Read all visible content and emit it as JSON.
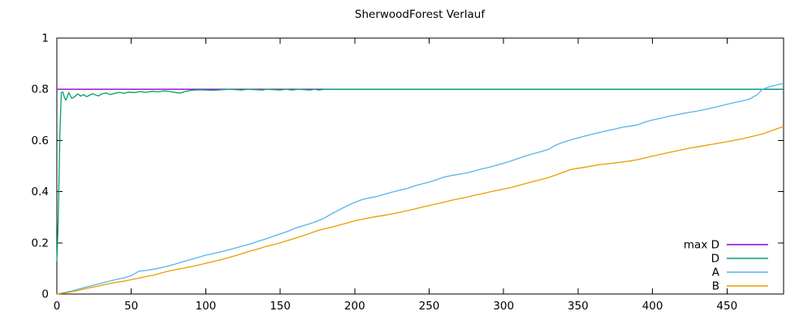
{
  "chart_data": {
    "type": "line",
    "title": "SherwoodForest Verlauf",
    "xlabel": "",
    "ylabel": "",
    "xlim": [
      0,
      488
    ],
    "ylim": [
      0,
      1
    ],
    "grid": false,
    "legend_position": "inside-bottom-right",
    "xticks": [
      {
        "v": 0,
        "label": "0"
      },
      {
        "v": 50,
        "label": "50"
      },
      {
        "v": 100,
        "label": "100"
      },
      {
        "v": 150,
        "label": "150"
      },
      {
        "v": 200,
        "label": "200"
      },
      {
        "v": 250,
        "label": "250"
      },
      {
        "v": 300,
        "label": "300"
      },
      {
        "v": 350,
        "label": "350"
      },
      {
        "v": 400,
        "label": "400"
      },
      {
        "v": 450,
        "label": "450"
      }
    ],
    "yticks": [
      {
        "v": 0,
        "label": "0"
      },
      {
        "v": 0.2,
        "label": "0.2"
      },
      {
        "v": 0.4,
        "label": "0.4"
      },
      {
        "v": 0.6,
        "label": "0.6"
      },
      {
        "v": 0.8,
        "label": "0.8"
      },
      {
        "v": 1,
        "label": "1"
      }
    ],
    "series": [
      {
        "name": "max D",
        "color": "#9400d3",
        "points": [
          [
            0,
            0.8
          ],
          [
            488,
            0.8
          ]
        ]
      },
      {
        "name": "D",
        "color": "#009e73",
        "points": [
          [
            0,
            0.127
          ],
          [
            1,
            0.3
          ],
          [
            2,
            0.62
          ],
          [
            3,
            0.787
          ],
          [
            4,
            0.79
          ],
          [
            5,
            0.77
          ],
          [
            6,
            0.757
          ],
          [
            7,
            0.771
          ],
          [
            8,
            0.787
          ],
          [
            9,
            0.776
          ],
          [
            10,
            0.765
          ],
          [
            12,
            0.771
          ],
          [
            14,
            0.782
          ],
          [
            16,
            0.773
          ],
          [
            18,
            0.779
          ],
          [
            20,
            0.771
          ],
          [
            22,
            0.777
          ],
          [
            24,
            0.783
          ],
          [
            26,
            0.778
          ],
          [
            28,
            0.774
          ],
          [
            30,
            0.781
          ],
          [
            33,
            0.786
          ],
          [
            36,
            0.779
          ],
          [
            39,
            0.784
          ],
          [
            42,
            0.788
          ],
          [
            45,
            0.784
          ],
          [
            48,
            0.789
          ],
          [
            52,
            0.787
          ],
          [
            56,
            0.791
          ],
          [
            60,
            0.788
          ],
          [
            64,
            0.792
          ],
          [
            68,
            0.79
          ],
          [
            72,
            0.794
          ],
          [
            76,
            0.791
          ],
          [
            80,
            0.787
          ],
          [
            83,
            0.785
          ],
          [
            86,
            0.791
          ],
          [
            90,
            0.796
          ],
          [
            95,
            0.798
          ],
          [
            100,
            0.797
          ],
          [
            105,
            0.796
          ],
          [
            110,
            0.798
          ],
          [
            116,
            0.8
          ],
          [
            124,
            0.797
          ],
          [
            128,
            0.8
          ],
          [
            138,
            0.797
          ],
          [
            141,
            0.8
          ],
          [
            150,
            0.797
          ],
          [
            154,
            0.8
          ],
          [
            158,
            0.797
          ],
          [
            162,
            0.8
          ],
          [
            170,
            0.797
          ],
          [
            173,
            0.8
          ],
          [
            176,
            0.797
          ],
          [
            180,
            0.8
          ],
          [
            488,
            0.8
          ]
        ]
      },
      {
        "name": "A",
        "color": "#56b4e9",
        "points": [
          [
            0,
            0
          ],
          [
            5,
            0.006
          ],
          [
            10,
            0.012
          ],
          [
            15,
            0.02
          ],
          [
            20,
            0.028
          ],
          [
            25,
            0.035
          ],
          [
            30,
            0.042
          ],
          [
            35,
            0.05
          ],
          [
            40,
            0.057
          ],
          [
            45,
            0.063
          ],
          [
            50,
            0.072
          ],
          [
            55,
            0.089
          ],
          [
            60,
            0.092
          ],
          [
            65,
            0.097
          ],
          [
            70,
            0.103
          ],
          [
            75,
            0.11
          ],
          [
            80,
            0.118
          ],
          [
            85,
            0.127
          ],
          [
            90,
            0.135
          ],
          [
            95,
            0.143
          ],
          [
            100,
            0.152
          ],
          [
            105,
            0.158
          ],
          [
            110,
            0.165
          ],
          [
            115,
            0.172
          ],
          [
            120,
            0.18
          ],
          [
            125,
            0.188
          ],
          [
            130,
            0.196
          ],
          [
            135,
            0.206
          ],
          [
            140,
            0.215
          ],
          [
            145,
            0.225
          ],
          [
            150,
            0.235
          ],
          [
            155,
            0.245
          ],
          [
            160,
            0.257
          ],
          [
            165,
            0.266
          ],
          [
            170,
            0.275
          ],
          [
            175,
            0.285
          ],
          [
            180,
            0.298
          ],
          [
            185,
            0.315
          ],
          [
            190,
            0.33
          ],
          [
            195,
            0.345
          ],
          [
            200,
            0.358
          ],
          [
            205,
            0.369
          ],
          [
            210,
            0.376
          ],
          [
            215,
            0.381
          ],
          [
            220,
            0.39
          ],
          [
            225,
            0.398
          ],
          [
            230,
            0.405
          ],
          [
            235,
            0.412
          ],
          [
            240,
            0.422
          ],
          [
            245,
            0.43
          ],
          [
            250,
            0.437
          ],
          [
            255,
            0.447
          ],
          [
            260,
            0.457
          ],
          [
            265,
            0.463
          ],
          [
            270,
            0.468
          ],
          [
            275,
            0.473
          ],
          [
            280,
            0.48
          ],
          [
            285,
            0.488
          ],
          [
            290,
            0.495
          ],
          [
            295,
            0.503
          ],
          [
            300,
            0.511
          ],
          [
            305,
            0.52
          ],
          [
            310,
            0.53
          ],
          [
            315,
            0.54
          ],
          [
            320,
            0.548
          ],
          [
            325,
            0.556
          ],
          [
            330,
            0.565
          ],
          [
            335,
            0.582
          ],
          [
            340,
            0.593
          ],
          [
            345,
            0.602
          ],
          [
            350,
            0.61
          ],
          [
            355,
            0.618
          ],
          [
            360,
            0.625
          ],
          [
            365,
            0.632
          ],
          [
            370,
            0.639
          ],
          [
            375,
            0.645
          ],
          [
            380,
            0.652
          ],
          [
            385,
            0.656
          ],
          [
            390,
            0.661
          ],
          [
            395,
            0.672
          ],
          [
            400,
            0.68
          ],
          [
            405,
            0.686
          ],
          [
            410,
            0.693
          ],
          [
            415,
            0.699
          ],
          [
            420,
            0.705
          ],
          [
            425,
            0.71
          ],
          [
            430,
            0.715
          ],
          [
            435,
            0.721
          ],
          [
            440,
            0.727
          ],
          [
            445,
            0.734
          ],
          [
            450,
            0.741
          ],
          [
            455,
            0.748
          ],
          [
            460,
            0.754
          ],
          [
            465,
            0.761
          ],
          [
            470,
            0.778
          ],
          [
            474,
            0.8
          ],
          [
            478,
            0.809
          ],
          [
            483,
            0.816
          ],
          [
            488,
            0.823
          ]
        ]
      },
      {
        "name": "B",
        "color": "#e69f00",
        "points": [
          [
            0,
            0
          ],
          [
            5,
            0.004
          ],
          [
            10,
            0.009
          ],
          [
            15,
            0.015
          ],
          [
            20,
            0.022
          ],
          [
            25,
            0.028
          ],
          [
            30,
            0.034
          ],
          [
            35,
            0.04
          ],
          [
            40,
            0.046
          ],
          [
            45,
            0.05
          ],
          [
            50,
            0.056
          ],
          [
            55,
            0.062
          ],
          [
            60,
            0.068
          ],
          [
            65,
            0.074
          ],
          [
            70,
            0.082
          ],
          [
            75,
            0.09
          ],
          [
            80,
            0.096
          ],
          [
            85,
            0.101
          ],
          [
            90,
            0.107
          ],
          [
            95,
            0.113
          ],
          [
            100,
            0.12
          ],
          [
            105,
            0.127
          ],
          [
            110,
            0.134
          ],
          [
            115,
            0.142
          ],
          [
            120,
            0.15
          ],
          [
            125,
            0.159
          ],
          [
            130,
            0.168
          ],
          [
            135,
            0.176
          ],
          [
            140,
            0.185
          ],
          [
            145,
            0.192
          ],
          [
            150,
            0.2
          ],
          [
            155,
            0.209
          ],
          [
            160,
            0.218
          ],
          [
            165,
            0.227
          ],
          [
            170,
            0.237
          ],
          [
            175,
            0.248
          ],
          [
            180,
            0.255
          ],
          [
            185,
            0.262
          ],
          [
            190,
            0.27
          ],
          [
            195,
            0.278
          ],
          [
            200,
            0.286
          ],
          [
            205,
            0.292
          ],
          [
            210,
            0.298
          ],
          [
            215,
            0.303
          ],
          [
            220,
            0.308
          ],
          [
            225,
            0.313
          ],
          [
            230,
            0.319
          ],
          [
            235,
            0.325
          ],
          [
            240,
            0.332
          ],
          [
            245,
            0.339
          ],
          [
            250,
            0.346
          ],
          [
            255,
            0.352
          ],
          [
            260,
            0.359
          ],
          [
            265,
            0.366
          ],
          [
            270,
            0.372
          ],
          [
            275,
            0.378
          ],
          [
            280,
            0.385
          ],
          [
            285,
            0.391
          ],
          [
            290,
            0.398
          ],
          [
            295,
            0.404
          ],
          [
            300,
            0.41
          ],
          [
            305,
            0.416
          ],
          [
            310,
            0.424
          ],
          [
            315,
            0.432
          ],
          [
            320,
            0.44
          ],
          [
            325,
            0.447
          ],
          [
            330,
            0.455
          ],
          [
            335,
            0.465
          ],
          [
            340,
            0.476
          ],
          [
            345,
            0.486
          ],
          [
            350,
            0.491
          ],
          [
            355,
            0.496
          ],
          [
            360,
            0.501
          ],
          [
            365,
            0.506
          ],
          [
            370,
            0.509
          ],
          [
            375,
            0.512
          ],
          [
            380,
            0.516
          ],
          [
            385,
            0.52
          ],
          [
            390,
            0.525
          ],
          [
            395,
            0.532
          ],
          [
            400,
            0.539
          ],
          [
            405,
            0.545
          ],
          [
            410,
            0.552
          ],
          [
            415,
            0.558
          ],
          [
            420,
            0.564
          ],
          [
            425,
            0.57
          ],
          [
            430,
            0.575
          ],
          [
            435,
            0.58
          ],
          [
            440,
            0.585
          ],
          [
            445,
            0.59
          ],
          [
            450,
            0.595
          ],
          [
            455,
            0.601
          ],
          [
            460,
            0.606
          ],
          [
            465,
            0.613
          ],
          [
            470,
            0.62
          ],
          [
            475,
            0.628
          ],
          [
            480,
            0.638
          ],
          [
            488,
            0.655
          ]
        ]
      }
    ]
  }
}
